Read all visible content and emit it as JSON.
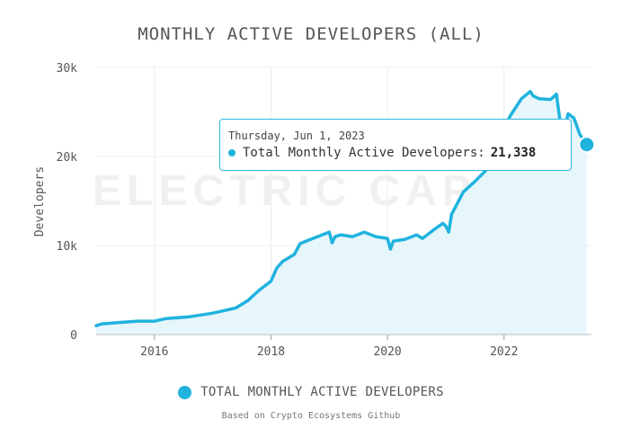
{
  "title": "MONTHLY ACTIVE DEVELOPERS (ALL)",
  "source_note": "Based on Crypto Ecosystems Github",
  "watermark": "ELECTRIC CAPITAL",
  "tooltip": {
    "date": "Thursday, Jun 1, 2023",
    "series_label": "Total Monthly Active Developers:",
    "value": "21,338"
  },
  "colors": {
    "line": "#20b3de",
    "area": "#e7f6fb",
    "grid": "#ececec",
    "text": "#555555"
  },
  "chart_data": {
    "type": "area",
    "title": "MONTHLY ACTIVE DEVELOPERS (ALL)",
    "xlabel": "",
    "ylabel": "Developers",
    "x_ticks": [
      2016,
      2018,
      2020,
      2022
    ],
    "y_ticks": [
      0,
      10000,
      20000,
      30000
    ],
    "y_tick_labels": [
      "0",
      "10k",
      "20k",
      "30k"
    ],
    "xlim": [
      2015.0,
      2023.5
    ],
    "ylim": [
      0,
      30000
    ],
    "grid": true,
    "legend_position": "bottom",
    "series": [
      {
        "name": "TOTAL MONTHLY ACTIVE DEVELOPERS",
        "color": "#20b3de",
        "x": [
          2015.0,
          2015.1,
          2015.3,
          2015.5,
          2015.7,
          2015.9,
          2016.0,
          2016.2,
          2016.4,
          2016.6,
          2016.8,
          2017.0,
          2017.2,
          2017.4,
          2017.6,
          2017.8,
          2018.0,
          2018.1,
          2018.2,
          2018.4,
          2018.5,
          2018.6,
          2018.8,
          2019.0,
          2019.05,
          2019.1,
          2019.2,
          2019.4,
          2019.6,
          2019.8,
          2020.0,
          2020.05,
          2020.1,
          2020.3,
          2020.5,
          2020.6,
          2020.8,
          2020.95,
          2021.0,
          2021.05,
          2021.1,
          2021.3,
          2021.5,
          2021.7,
          2021.8,
          2022.0,
          2022.1,
          2022.3,
          2022.45,
          2022.5,
          2022.6,
          2022.8,
          2022.9,
          2023.0,
          2023.1,
          2023.2,
          2023.3,
          2023.42
        ],
        "values": [
          1000,
          1200,
          1300,
          1400,
          1500,
          1500,
          1500,
          1800,
          1900,
          2000,
          2200,
          2400,
          2700,
          3000,
          3800,
          5000,
          6000,
          7500,
          8200,
          9000,
          10200,
          10500,
          11000,
          11500,
          10300,
          11000,
          11200,
          11000,
          11500,
          11000,
          10800,
          9600,
          10500,
          10700,
          11200,
          10800,
          11800,
          12500,
          12200,
          11500,
          13500,
          16000,
          17200,
          18500,
          20500,
          22800,
          24500,
          26500,
          27300,
          26800,
          26500,
          26400,
          27000,
          22000,
          24800,
          24300,
          22500,
          21338
        ]
      }
    ]
  }
}
